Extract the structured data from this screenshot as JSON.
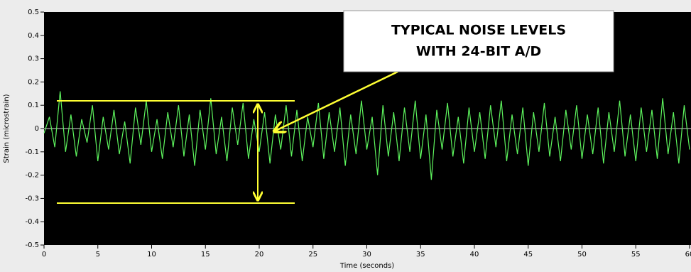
{
  "chart_data": {
    "type": "line",
    "annotation": [
      "TYPICAL NOISE LEVELS",
      "WITH 24-BIT A/D"
    ],
    "xlabel": "Time (seconds)",
    "ylabel": "Strain (microstrain)",
    "x": [
      0,
      0.5,
      1,
      1.5,
      2,
      2.5,
      3,
      3.5,
      4,
      4.5,
      5,
      5.5,
      6,
      6.5,
      7,
      7.5,
      8,
      8.5,
      9,
      9.5,
      10,
      10.5,
      11,
      11.5,
      12,
      12.5,
      13,
      13.5,
      14,
      14.5,
      15,
      15.5,
      16,
      16.5,
      17,
      17.5,
      18,
      18.5,
      19,
      19.5,
      20,
      20.5,
      21,
      21.5,
      22,
      22.5,
      23,
      23.5,
      24,
      24.5,
      25,
      25.5,
      26,
      26.5,
      27,
      27.5,
      28,
      28.5,
      29,
      29.5,
      30,
      30.5,
      31,
      31.5,
      32,
      32.5,
      33,
      33.5,
      34,
      34.5,
      35,
      35.5,
      36,
      36.5,
      37,
      37.5,
      38,
      38.5,
      39,
      39.5,
      40,
      40.5,
      41,
      41.5,
      42,
      42.5,
      43,
      43.5,
      44,
      44.5,
      45,
      45.5,
      46,
      46.5,
      47,
      47.5,
      48,
      48.5,
      49,
      49.5,
      50,
      50.5,
      51,
      51.5,
      52,
      52.5,
      53,
      53.5,
      54,
      54.5,
      55,
      55.5,
      56,
      56.5,
      57,
      57.5,
      58,
      58.5,
      59,
      59.5,
      60
    ],
    "series": [
      {
        "color": "#5ef55e",
        "values": [
          -0.02,
          0.05,
          -0.08,
          0.16,
          -0.1,
          0.06,
          -0.12,
          0.04,
          -0.06,
          0.1,
          -0.14,
          0.05,
          -0.09,
          0.08,
          -0.11,
          0.03,
          -0.15,
          0.09,
          -0.07,
          0.12,
          -0.1,
          0.04,
          -0.13,
          0.07,
          -0.08,
          0.1,
          -0.12,
          0.06,
          -0.16,
          0.08,
          -0.09,
          0.13,
          -0.11,
          0.05,
          -0.14,
          0.09,
          -0.07,
          0.11,
          -0.13,
          0.04,
          -0.1,
          0.07,
          -0.15,
          0.06,
          -0.09,
          0.1,
          -0.12,
          0.08,
          -0.14,
          0.05,
          -0.08,
          0.11,
          -0.13,
          0.07,
          -0.1,
          0.09,
          -0.16,
          0.06,
          -0.11,
          0.12,
          -0.09,
          0.05,
          -0.2,
          0.1,
          -0.12,
          0.07,
          -0.14,
          0.09,
          -0.1,
          0.12,
          -0.13,
          0.06,
          -0.22,
          0.08,
          -0.09,
          0.11,
          -0.12,
          0.05,
          -0.15,
          0.09,
          -0.1,
          0.07,
          -0.13,
          0.1,
          -0.08,
          0.12,
          -0.14,
          0.06,
          -0.11,
          0.09,
          -0.16,
          0.07,
          -0.1,
          0.11,
          -0.12,
          0.05,
          -0.14,
          0.08,
          -0.09,
          0.1,
          -0.13,
          0.06,
          -0.11,
          0.09,
          -0.15,
          0.07,
          -0.1,
          0.12,
          -0.12,
          0.06,
          -0.14,
          0.09,
          -0.1,
          0.08,
          -0.13,
          0.13,
          -0.11,
          0.07,
          -0.15,
          0.1,
          -0.09
        ]
      }
    ],
    "xlim": [
      0,
      60
    ],
    "xticks": [
      0,
      5,
      10,
      15,
      20,
      25,
      30,
      35,
      40,
      45,
      50,
      55,
      60
    ],
    "ylim": [
      -0.5,
      0.5
    ],
    "yticks": [
      0.5,
      0.4,
      0.3,
      0.2,
      0.1,
      0,
      -0.1,
      -0.2,
      -0.3,
      -0.4,
      -0.5
    ]
  }
}
